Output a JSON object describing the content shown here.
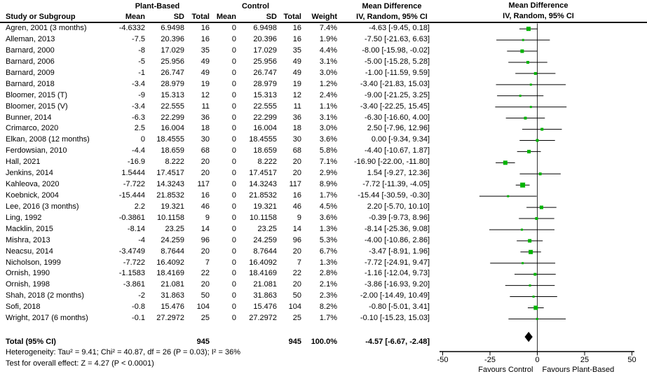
{
  "table": {
    "study_col": "Study or Subgroup",
    "group1": "Plant-Based",
    "group2": "Control",
    "mean": "Mean",
    "sd": "SD",
    "total": "Total",
    "weight": "Weight",
    "md1": "Mean Difference",
    "md2": "IV, Random, 95% CI"
  },
  "chart_data": {
    "type": "forest",
    "title": "Mean Difference — IV, Random, 95% CI",
    "xlim": [
      -50,
      50
    ],
    "axis": {
      "ticks": [
        "-50",
        "-25",
        "0",
        "25",
        "50"
      ],
      "left_label": "Favours Control",
      "right_label": "Favours Plant-Based"
    },
    "colors": {
      "square": "#00b300",
      "diamond": "#000000",
      "line": "#000000",
      "zero_line": "#333333"
    },
    "studies": [
      {
        "name": "Agren, 2001 (3 months)",
        "pb_mean": "-4.6332",
        "pb_sd": "6.9498",
        "pb_total": "16",
        "c_mean": "0",
        "c_sd": "6.9498",
        "c_total": "16",
        "weight": "7.4%",
        "weight_val": 7.4,
        "md": -4.63,
        "lo": -9.45,
        "hi": 0.18,
        "md_text": "-4.63 [-9.45, 0.18]"
      },
      {
        "name": "Alleman, 2013",
        "pb_mean": "-7.5",
        "pb_sd": "20.396",
        "pb_total": "16",
        "c_mean": "0",
        "c_sd": "20.396",
        "c_total": "16",
        "weight": "1.9%",
        "weight_val": 1.9,
        "md": -7.5,
        "lo": -21.63,
        "hi": 6.63,
        "md_text": "-7.50 [-21.63, 6.63]"
      },
      {
        "name": "Barnard, 2000",
        "pb_mean": "-8",
        "pb_sd": "17.029",
        "pb_total": "35",
        "c_mean": "0",
        "c_sd": "17.029",
        "c_total": "35",
        "weight": "4.4%",
        "weight_val": 4.4,
        "md": -8.0,
        "lo": -15.98,
        "hi": -0.02,
        "md_text": "-8.00 [-15.98, -0.02]"
      },
      {
        "name": "Barnard, 2006",
        "pb_mean": "-5",
        "pb_sd": "25.956",
        "pb_total": "49",
        "c_mean": "0",
        "c_sd": "25.956",
        "c_total": "49",
        "weight": "3.1%",
        "weight_val": 3.1,
        "md": -5.0,
        "lo": -15.28,
        "hi": 5.28,
        "md_text": "-5.00 [-15.28, 5.28]"
      },
      {
        "name": "Barnard, 2009",
        "pb_mean": "-1",
        "pb_sd": "26.747",
        "pb_total": "49",
        "c_mean": "0",
        "c_sd": "26.747",
        "c_total": "49",
        "weight": "3.0%",
        "weight_val": 3.0,
        "md": -1.0,
        "lo": -11.59,
        "hi": 9.59,
        "md_text": "-1.00 [-11.59, 9.59]"
      },
      {
        "name": "Barnard, 2018",
        "pb_mean": "-3.4",
        "pb_sd": "28.979",
        "pb_total": "19",
        "c_mean": "0",
        "c_sd": "28.979",
        "c_total": "19",
        "weight": "1.2%",
        "weight_val": 1.2,
        "md": -3.4,
        "lo": -21.83,
        "hi": 15.03,
        "md_text": "-3.40 [-21.83, 15.03]"
      },
      {
        "name": "Bloomer, 2015 (T)",
        "pb_mean": "-9",
        "pb_sd": "15.313",
        "pb_total": "12",
        "c_mean": "0",
        "c_sd": "15.313",
        "c_total": "12",
        "weight": "2.4%",
        "weight_val": 2.4,
        "md": -9.0,
        "lo": -21.25,
        "hi": 3.25,
        "md_text": "-9.00 [-21.25, 3.25]"
      },
      {
        "name": "Bloomer, 2015 (V)",
        "pb_mean": "-3.4",
        "pb_sd": "22.555",
        "pb_total": "11",
        "c_mean": "0",
        "c_sd": "22.555",
        "c_total": "11",
        "weight": "1.1%",
        "weight_val": 1.1,
        "md": -3.4,
        "lo": -22.25,
        "hi": 15.45,
        "md_text": "-3.40 [-22.25, 15.45]"
      },
      {
        "name": "Bunner, 2014",
        "pb_mean": "-6.3",
        "pb_sd": "22.299",
        "pb_total": "36",
        "c_mean": "0",
        "c_sd": "22.299",
        "c_total": "36",
        "weight": "3.1%",
        "weight_val": 3.1,
        "md": -6.3,
        "lo": -16.6,
        "hi": 4.0,
        "md_text": "-6.30 [-16.60, 4.00]"
      },
      {
        "name": "Crimarco, 2020",
        "pb_mean": "2.5",
        "pb_sd": "16.004",
        "pb_total": "18",
        "c_mean": "0",
        "c_sd": "16.004",
        "c_total": "18",
        "weight": "3.0%",
        "weight_val": 3.0,
        "md": 2.5,
        "lo": -7.96,
        "hi": 12.96,
        "md_text": "2.50 [-7.96, 12.96]"
      },
      {
        "name": "Elkan, 2008 (12 months)",
        "pb_mean": "0",
        "pb_sd": "18.4555",
        "pb_total": "30",
        "c_mean": "0",
        "c_sd": "18.4555",
        "c_total": "30",
        "weight": "3.6%",
        "weight_val": 3.6,
        "md": 0.0,
        "lo": -9.34,
        "hi": 9.34,
        "md_text": "0.00 [-9.34, 9.34]"
      },
      {
        "name": "Ferdowsian, 2010",
        "pb_mean": "-4.4",
        "pb_sd": "18.659",
        "pb_total": "68",
        "c_mean": "0",
        "c_sd": "18.659",
        "c_total": "68",
        "weight": "5.8%",
        "weight_val": 5.8,
        "md": -4.4,
        "lo": -10.67,
        "hi": 1.87,
        "md_text": "-4.40 [-10.67, 1.87]"
      },
      {
        "name": "Hall, 2021",
        "pb_mean": "-16.9",
        "pb_sd": "8.222",
        "pb_total": "20",
        "c_mean": "0",
        "c_sd": "8.222",
        "c_total": "20",
        "weight": "7.1%",
        "weight_val": 7.1,
        "md": -16.9,
        "lo": -22.0,
        "hi": -11.8,
        "md_text": "-16.90 [-22.00, -11.80]"
      },
      {
        "name": "Jenkins, 2014",
        "pb_mean": "1.5444",
        "pb_sd": "17.4517",
        "pb_total": "20",
        "c_mean": "0",
        "c_sd": "17.4517",
        "c_total": "20",
        "weight": "2.9%",
        "weight_val": 2.9,
        "md": 1.54,
        "lo": -9.27,
        "hi": 12.36,
        "md_text": "1.54 [-9.27, 12.36]"
      },
      {
        "name": "Kahleova, 2020",
        "pb_mean": "-7.722",
        "pb_sd": "14.3243",
        "pb_total": "117",
        "c_mean": "0",
        "c_sd": "14.3243",
        "c_total": "117",
        "weight": "8.9%",
        "weight_val": 8.9,
        "md": -7.72,
        "lo": -11.39,
        "hi": -4.05,
        "md_text": "-7.72 [-11.39, -4.05]"
      },
      {
        "name": "Koebnick, 2004",
        "pb_mean": "-15.444",
        "pb_sd": "21.8532",
        "pb_total": "16",
        "c_mean": "0",
        "c_sd": "21.8532",
        "c_total": "16",
        "weight": "1.7%",
        "weight_val": 1.7,
        "md": -15.44,
        "lo": -30.59,
        "hi": -0.3,
        "md_text": "-15.44 [-30.59, -0.30]"
      },
      {
        "name": "Lee, 2016 (3 months)",
        "pb_mean": "2.2",
        "pb_sd": "19.321",
        "pb_total": "46",
        "c_mean": "0",
        "c_sd": "19.321",
        "c_total": "46",
        "weight": "4.5%",
        "weight_val": 4.5,
        "md": 2.2,
        "lo": -5.7,
        "hi": 10.1,
        "md_text": "2.20 [-5.70, 10.10]"
      },
      {
        "name": "Ling, 1992",
        "pb_mean": "-0.3861",
        "pb_sd": "10.1158",
        "pb_total": "9",
        "c_mean": "0",
        "c_sd": "10.1158",
        "c_total": "9",
        "weight": "3.6%",
        "weight_val": 3.6,
        "md": -0.39,
        "lo": -9.73,
        "hi": 8.96,
        "md_text": "-0.39 [-9.73, 8.96]"
      },
      {
        "name": "Macklin, 2015",
        "pb_mean": "-8.14",
        "pb_sd": "23.25",
        "pb_total": "14",
        "c_mean": "0",
        "c_sd": "23.25",
        "c_total": "14",
        "weight": "1.3%",
        "weight_val": 1.3,
        "md": -8.14,
        "lo": -25.36,
        "hi": 9.08,
        "md_text": "-8.14 [-25.36, 9.08]"
      },
      {
        "name": "Mishra, 2013",
        "pb_mean": "-4",
        "pb_sd": "24.259",
        "pb_total": "96",
        "c_mean": "0",
        "c_sd": "24.259",
        "c_total": "96",
        "weight": "5.3%",
        "weight_val": 5.3,
        "md": -4.0,
        "lo": -10.86,
        "hi": 2.86,
        "md_text": "-4.00 [-10.86, 2.86]"
      },
      {
        "name": "Neacsu, 2014",
        "pb_mean": "-3.4749",
        "pb_sd": "8.7644",
        "pb_total": "20",
        "c_mean": "0",
        "c_sd": "8.7644",
        "c_total": "20",
        "weight": "6.7%",
        "weight_val": 6.7,
        "md": -3.47,
        "lo": -8.91,
        "hi": 1.96,
        "md_text": "-3.47 [-8.91, 1.96]"
      },
      {
        "name": "Nicholson, 1999",
        "pb_mean": "-7.722",
        "pb_sd": "16.4092",
        "pb_total": "7",
        "c_mean": "0",
        "c_sd": "16.4092",
        "c_total": "7",
        "weight": "1.3%",
        "weight_val": 1.3,
        "md": -7.72,
        "lo": -24.91,
        "hi": 9.47,
        "md_text": "-7.72 [-24.91, 9.47]"
      },
      {
        "name": "Ornish, 1990",
        "pb_mean": "-1.1583",
        "pb_sd": "18.4169",
        "pb_total": "22",
        "c_mean": "0",
        "c_sd": "18.4169",
        "c_total": "22",
        "weight": "2.8%",
        "weight_val": 2.8,
        "md": -1.16,
        "lo": -12.04,
        "hi": 9.73,
        "md_text": "-1.16 [-12.04, 9.73]"
      },
      {
        "name": "Ornish, 1998",
        "pb_mean": "-3.861",
        "pb_sd": "21.081",
        "pb_total": "20",
        "c_mean": "0",
        "c_sd": "21.081",
        "c_total": "20",
        "weight": "2.1%",
        "weight_val": 2.1,
        "md": -3.86,
        "lo": -16.93,
        "hi": 9.2,
        "md_text": "-3.86 [-16.93, 9.20]"
      },
      {
        "name": "Shah, 2018 (2 months)",
        "pb_mean": "-2",
        "pb_sd": "31.863",
        "pb_total": "50",
        "c_mean": "0",
        "c_sd": "31.863",
        "c_total": "50",
        "weight": "2.3%",
        "weight_val": 2.3,
        "md": -2.0,
        "lo": -14.49,
        "hi": 10.49,
        "md_text": "-2.00 [-14.49, 10.49]"
      },
      {
        "name": "Sofi, 2018",
        "pb_mean": "-0.8",
        "pb_sd": "15.476",
        "pb_total": "104",
        "c_mean": "0",
        "c_sd": "15.476",
        "c_total": "104",
        "weight": "8.2%",
        "weight_val": 8.2,
        "md": -0.8,
        "lo": -5.01,
        "hi": 3.41,
        "md_text": "-0.80 [-5.01, 3.41]"
      },
      {
        "name": "Wright, 2017 (6 months)",
        "pb_mean": "-0.1",
        "pb_sd": "27.2972",
        "pb_total": "25",
        "c_mean": "0",
        "c_sd": "27.2972",
        "c_total": "25",
        "weight": "1.7%",
        "weight_val": 1.7,
        "md": -0.1,
        "lo": -15.23,
        "hi": 15.03,
        "md_text": "-0.10 [-15.23, 15.03]"
      }
    ],
    "total": {
      "label": "Total (95% CI)",
      "pb_total": "945",
      "c_total": "945",
      "weight": "100.0%",
      "md": -4.57,
      "lo": -6.67,
      "hi": -2.48,
      "md_text": "-4.57 [-6.67, -2.48]"
    },
    "heterogeneity": "Heterogeneity: Tau² = 9.41; Chi² = 40.87, df = 26 (P = 0.03); I² = 36%",
    "overall_effect": "Test for overall effect: Z = 4.27 (P < 0.0001)"
  }
}
